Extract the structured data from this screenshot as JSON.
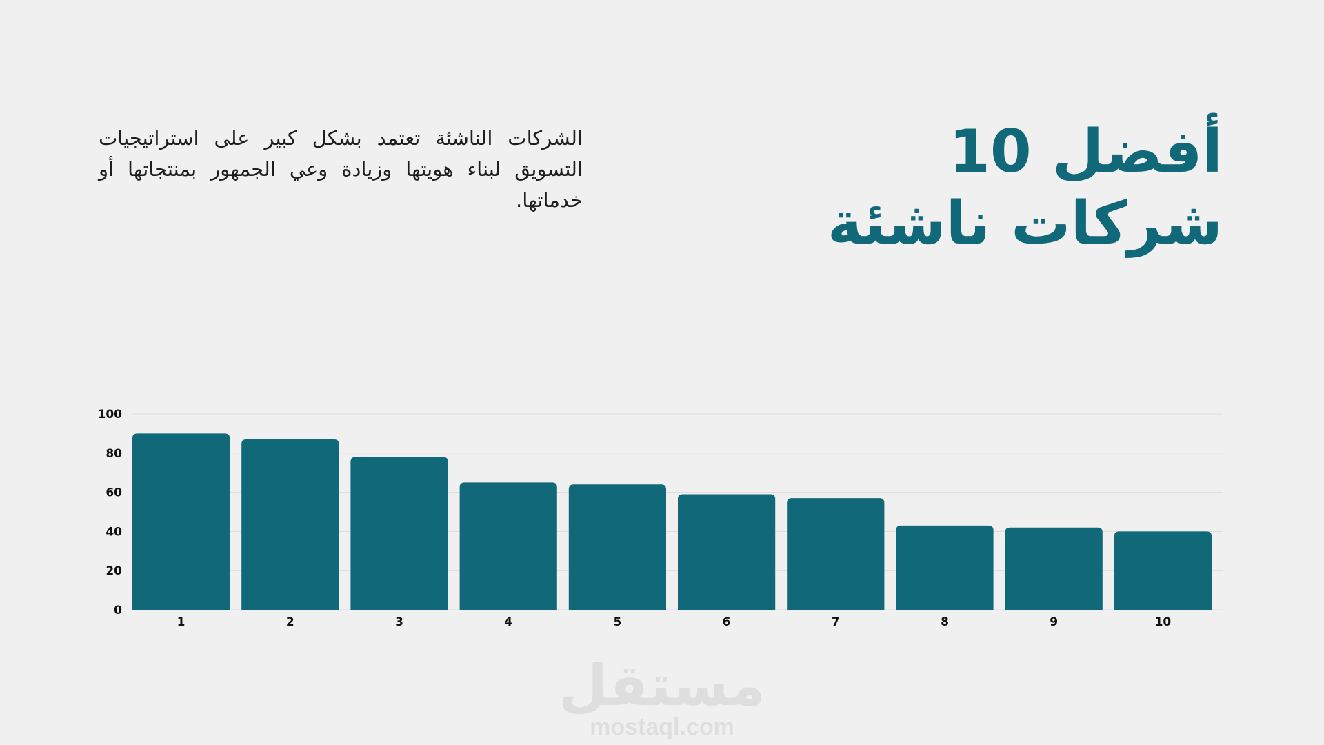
{
  "header": {
    "title_line1": "أفضل 10",
    "title_line2": "شركات ناشئة",
    "description": "الشركات الناشئة تعتمد بشكل كبير على استراتيجيات التسويق لبناء هويتها وزيادة وعي الجمهور بمنتجاتها أو خدماتها."
  },
  "watermark": {
    "logo_text": "مستقل",
    "url": "mostaql.com"
  },
  "colors": {
    "bar": "#106878",
    "title": "#106878",
    "grid": "#dcdcdc",
    "tick_text": "#111111"
  },
  "chart_data": {
    "type": "bar",
    "categories": [
      "1",
      "2",
      "3",
      "4",
      "5",
      "6",
      "7",
      "8",
      "9",
      "10"
    ],
    "values": [
      90,
      87,
      78,
      65,
      64,
      59,
      57,
      43,
      42,
      40
    ],
    "title": "",
    "xlabel": "",
    "ylabel": "",
    "ylim": [
      0,
      100
    ],
    "yticks": [
      0,
      20,
      40,
      60,
      80,
      100
    ],
    "grid": true,
    "legend": "none"
  }
}
